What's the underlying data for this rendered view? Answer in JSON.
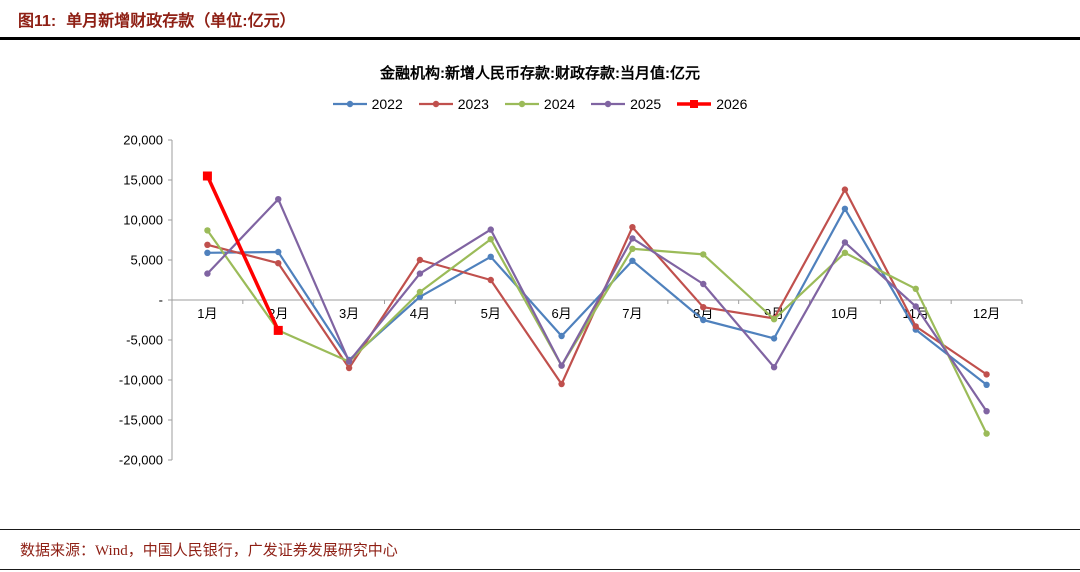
{
  "page": {
    "background": "#ffffff",
    "brand_color": "#8E1F14",
    "axis_color": "#9e9e9e"
  },
  "header": {
    "figure_label": "图11:",
    "title": "单月新增财政存款（单位:亿元）"
  },
  "chart": {
    "title": "金融机构:新增人民币存款:财政存款:当月值:亿元"
  },
  "footer": {
    "source": "数据来源：Wind，中国人民银行，广发证券发展研究中心"
  },
  "chart_data": {
    "type": "line",
    "title": "金融机构:新增人民币存款:财政存款:当月值:亿元",
    "categories": [
      "1月",
      "2月",
      "3月",
      "4月",
      "5月",
      "6月",
      "7月",
      "8月",
      "9月",
      "10月",
      "11月",
      "12月"
    ],
    "series": [
      {
        "name": "2022",
        "color": "#4F81BD",
        "marker": "circle",
        "line_width": 2.2,
        "values": [
          5900,
          6000,
          -7500,
          400,
          5400,
          -4500,
          4900,
          -2500,
          -4800,
          11400,
          -3700,
          -10600
        ]
      },
      {
        "name": "2023",
        "color": "#C0504D",
        "marker": "circle",
        "line_width": 2.2,
        "values": [
          6900,
          4600,
          -8500,
          5000,
          2500,
          -10500,
          9100,
          -900,
          -2300,
          13800,
          -3300,
          -9300
        ]
      },
      {
        "name": "2024",
        "color": "#9BBB59",
        "marker": "circle",
        "line_width": 2.2,
        "values": [
          8700,
          -3800,
          -7700,
          1000,
          7600,
          -8200,
          6400,
          5700,
          -2400,
          5900,
          1400,
          -16700
        ]
      },
      {
        "name": "2025",
        "color": "#8064A2",
        "marker": "circle",
        "line_width": 2.2,
        "values": [
          3300,
          12600,
          -7700,
          3300,
          8800,
          -8200,
          7700,
          2000,
          -8400,
          7200,
          -800,
          -13900
        ]
      },
      {
        "name": "2026",
        "color": "#FF0000",
        "marker": "square",
        "line_width": 3.5,
        "values": [
          15500,
          -3800,
          null,
          null,
          null,
          null,
          null,
          null,
          null,
          null,
          null,
          null
        ]
      }
    ],
    "ylim": [
      -20000,
      20000
    ],
    "ytick_values": [
      20000,
      15000,
      10000,
      5000,
      0,
      -5000,
      -10000,
      -15000,
      -20000
    ],
    "ytick_labels": [
      "20,000",
      "15,000",
      "10,000",
      "5,000",
      "-",
      "-5,000",
      "-10,000",
      "-15,000",
      "-20,000"
    ],
    "legend_position": "top",
    "grid": false
  }
}
